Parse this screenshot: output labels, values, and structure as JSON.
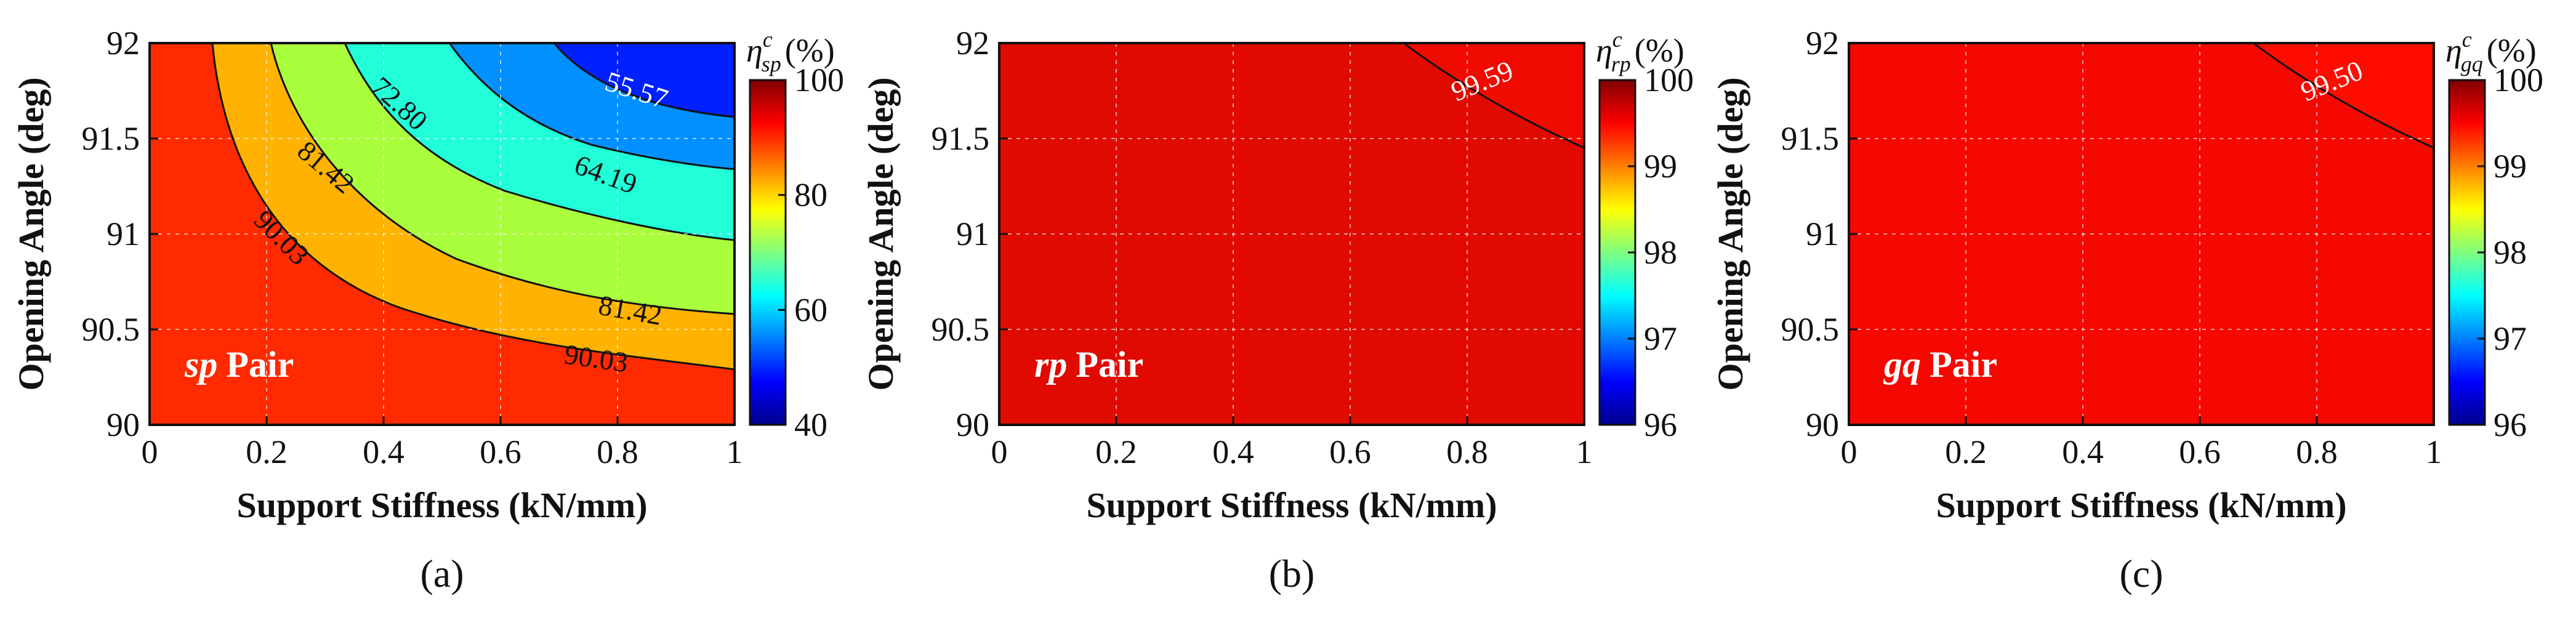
{
  "chart_data": [
    {
      "type": "heatmap",
      "panel_caption": "(a)",
      "pair_label_bold_italic": "sp",
      "pair_label_rest": "Pair",
      "xlabel": "Support Stiffness (kN/mm)",
      "ylabel": "Opening Angle (deg)",
      "xlim": [
        0,
        1
      ],
      "ylim": [
        90,
        92
      ],
      "xticks": [
        "0",
        "0.2",
        "0.4",
        "0.6",
        "0.8",
        "1"
      ],
      "yticks": [
        "90",
        "90.5",
        "91",
        "91.5",
        "92"
      ],
      "grid": true,
      "colorbar": {
        "title_symbol": "η",
        "title_sup": "c",
        "title_sub": "sp",
        "title_unit": "(%)",
        "range": [
          40,
          100
        ],
        "ticks": [
          "40",
          "60",
          "80",
          "100"
        ]
      },
      "contour_levels": [
        90.03,
        81.42,
        72.8,
        64.19,
        55.57
      ],
      "contour_labels": [
        "90.03",
        "81.42",
        "72.80",
        "64.19",
        "55.57",
        "90.03",
        "81.42"
      ],
      "filled_region_colors": [
        "#ff2a00",
        "#ffb300",
        "#aaff3c",
        "#20ffd8",
        "#0090ff",
        "#0020ff"
      ]
    },
    {
      "type": "heatmap",
      "panel_caption": "(b)",
      "pair_label_bold_italic": "rp",
      "pair_label_rest": "Pair",
      "xlabel": "Support Stiffness (kN/mm)",
      "ylabel": "Opening Angle (deg)",
      "xlim": [
        0,
        1
      ],
      "ylim": [
        90,
        92
      ],
      "xticks": [
        "0",
        "0.2",
        "0.4",
        "0.6",
        "0.8",
        "1"
      ],
      "yticks": [
        "90",
        "90.5",
        "91",
        "91.5",
        "92"
      ],
      "grid": true,
      "colorbar": {
        "title_symbol": "η",
        "title_sup": "c",
        "title_sub": "rp",
        "title_unit": "(%)",
        "range": [
          96,
          100
        ],
        "ticks": [
          "96",
          "97",
          "98",
          "99",
          "100"
        ]
      },
      "contour_levels": [
        99.59
      ],
      "contour_labels": [
        "99.59"
      ],
      "filled_region_colors": [
        "#e00a00",
        "#f00a00"
      ]
    },
    {
      "type": "heatmap",
      "panel_caption": "(c)",
      "pair_label_bold_italic": "gq",
      "pair_label_rest": "Pair",
      "xlabel": "Support Stiffness (kN/mm)",
      "ylabel": "Opening Angle (deg)",
      "xlim": [
        0,
        1
      ],
      "ylim": [
        90,
        92
      ],
      "xticks": [
        "0",
        "0.2",
        "0.4",
        "0.6",
        "0.8",
        "1"
      ],
      "yticks": [
        "90",
        "90.5",
        "91",
        "91.5",
        "92"
      ],
      "grid": true,
      "colorbar": {
        "title_symbol": "η",
        "title_sup": "c",
        "title_sub": "gq",
        "title_unit": "(%)",
        "range": [
          96,
          100
        ],
        "ticks": [
          "96",
          "97",
          "98",
          "99",
          "100"
        ]
      },
      "contour_levels": [
        99.5
      ],
      "contour_labels": [
        "99.50"
      ],
      "filled_region_colors": [
        "#f50800",
        "#ff0c00"
      ]
    }
  ]
}
